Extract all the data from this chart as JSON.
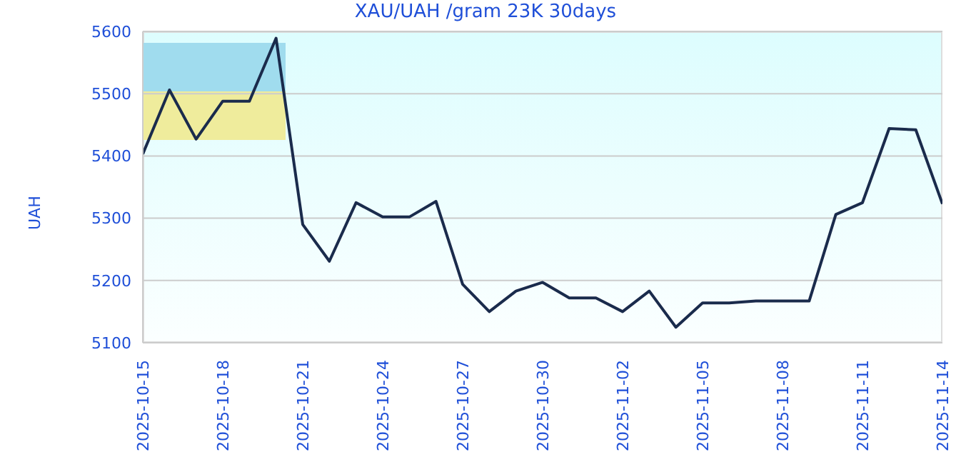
{
  "chart_data": {
    "type": "line",
    "title": "XAU/UAH /gram 23K 30days",
    "ylabel": "UAH",
    "x": [
      "2025-10-15",
      "2025-10-16",
      "2025-10-17",
      "2025-10-18",
      "2025-10-19",
      "2025-10-20",
      "2025-10-21",
      "2025-10-22",
      "2025-10-23",
      "2025-10-24",
      "2025-10-25",
      "2025-10-26",
      "2025-10-27",
      "2025-10-28",
      "2025-10-29",
      "2025-10-30",
      "2025-10-31",
      "2025-11-01",
      "2025-11-02",
      "2025-11-03",
      "2025-11-04",
      "2025-11-05",
      "2025-11-06",
      "2025-11-07",
      "2025-11-08",
      "2025-11-09",
      "2025-11-10",
      "2025-11-11",
      "2025-11-12",
      "2025-11-13",
      "2025-11-14"
    ],
    "series": [
      {
        "color": "#1a2b4c",
        "values": [
          5403,
          5506,
          5427,
          5488,
          5488,
          5589,
          5290,
          5231,
          5325,
          5302,
          5302,
          5327,
          5194,
          5150,
          5183,
          5197,
          5172,
          5172,
          5150,
          5183,
          5125,
          5164,
          5164,
          5167,
          5167,
          5167,
          5306,
          5325,
          5444,
          5442,
          5323
        ]
      }
    ],
    "xlim": [
      "2025-10-15",
      "2025-11-14"
    ],
    "xticks": [
      "2025-10-15",
      "2025-10-18",
      "2025-10-21",
      "2025-10-24",
      "2025-10-27",
      "2025-10-30",
      "2025-11-02",
      "2025-11-05",
      "2025-11-08",
      "2025-11-11",
      "2025-11-14"
    ],
    "ylim": [
      5100,
      5600
    ],
    "yticks": [
      5100,
      5200,
      5300,
      5400,
      5500,
      5600
    ],
    "grid": "y",
    "legend": false,
    "marker": "none",
    "line_style": "solid"
  }
}
